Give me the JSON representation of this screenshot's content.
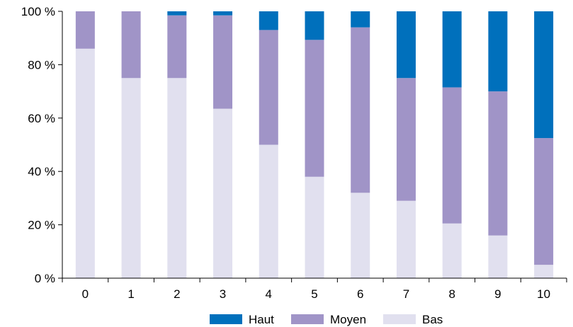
{
  "chart_data": {
    "type": "bar",
    "stacked": true,
    "title": "",
    "xlabel": "",
    "ylabel": "",
    "categories": [
      "0",
      "1",
      "2",
      "3",
      "4",
      "5",
      "6",
      "7",
      "8",
      "9",
      "10"
    ],
    "series": [
      {
        "name": "Bas",
        "color": "#e1e0ef",
        "values": [
          86,
          75,
          75,
          63.5,
          50,
          38,
          32,
          29,
          20.5,
          16,
          5
        ]
      },
      {
        "name": "Moyen",
        "color": "#a094c7",
        "values": [
          14,
          25,
          23.5,
          35,
          43,
          51.3,
          62,
          46,
          51,
          54,
          47.5
        ]
      },
      {
        "name": "Haut",
        "color": "#0070bc",
        "values": [
          0,
          0,
          1.5,
          1.5,
          7,
          10.7,
          6,
          25,
          28.5,
          30,
          47.5
        ]
      }
    ],
    "ylim": [
      0,
      100
    ],
    "y_ticks": [
      "0 %",
      "20 %",
      "40 %",
      "60 %",
      "80 %",
      "100 %"
    ],
    "grid": false,
    "legend": {
      "position": "bottom",
      "order": [
        "Haut",
        "Moyen",
        "Bas"
      ]
    }
  }
}
